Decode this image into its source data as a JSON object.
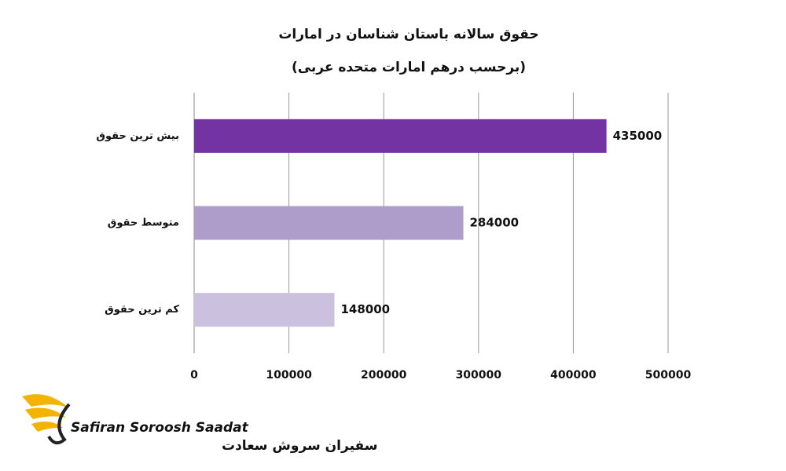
{
  "chart_data": {
    "type": "bar",
    "orientation": "horizontal",
    "title": "حقوق سالانه باستان شناسان در امارات",
    "subtitle": "(برحسب درهم امارات متحده عربی)",
    "categories": [
      "بیش ترین حقوق",
      "متوسط حقوق",
      "کم ترین حقوق"
    ],
    "values": [
      435000,
      284000,
      148000
    ],
    "colors": [
      "#7433a3",
      "#ae9ccb",
      "#cbc0dd"
    ],
    "xlim": [
      0,
      500000
    ],
    "xticks": [
      0,
      100000,
      200000,
      300000,
      400000,
      500000
    ],
    "grid": true
  },
  "logo": {
    "name": "Safiran Soroosh Saadat",
    "name_fa": "سفیران سروش سعادت"
  }
}
